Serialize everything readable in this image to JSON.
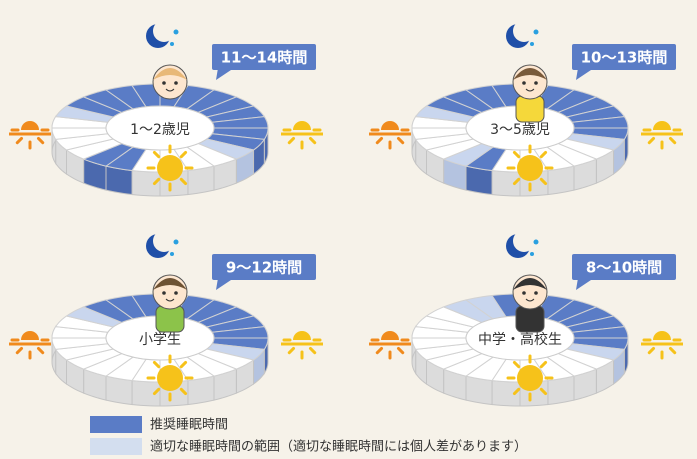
{
  "panels": [
    {
      "label": "1～2歳児",
      "hours": "11～14時間"
    },
    {
      "label": "3～5歳児",
      "hours": "10～13時間"
    },
    {
      "label": "小学生",
      "hours": "9～12時間"
    },
    {
      "label": "中学・高校生",
      "hours": "8～10時間"
    }
  ],
  "legend": [
    {
      "label": "推奨睡眠時間"
    },
    {
      "label": "適切な睡眠時間の範囲（適切な睡眠時間には個人差があります）"
    }
  ]
}
